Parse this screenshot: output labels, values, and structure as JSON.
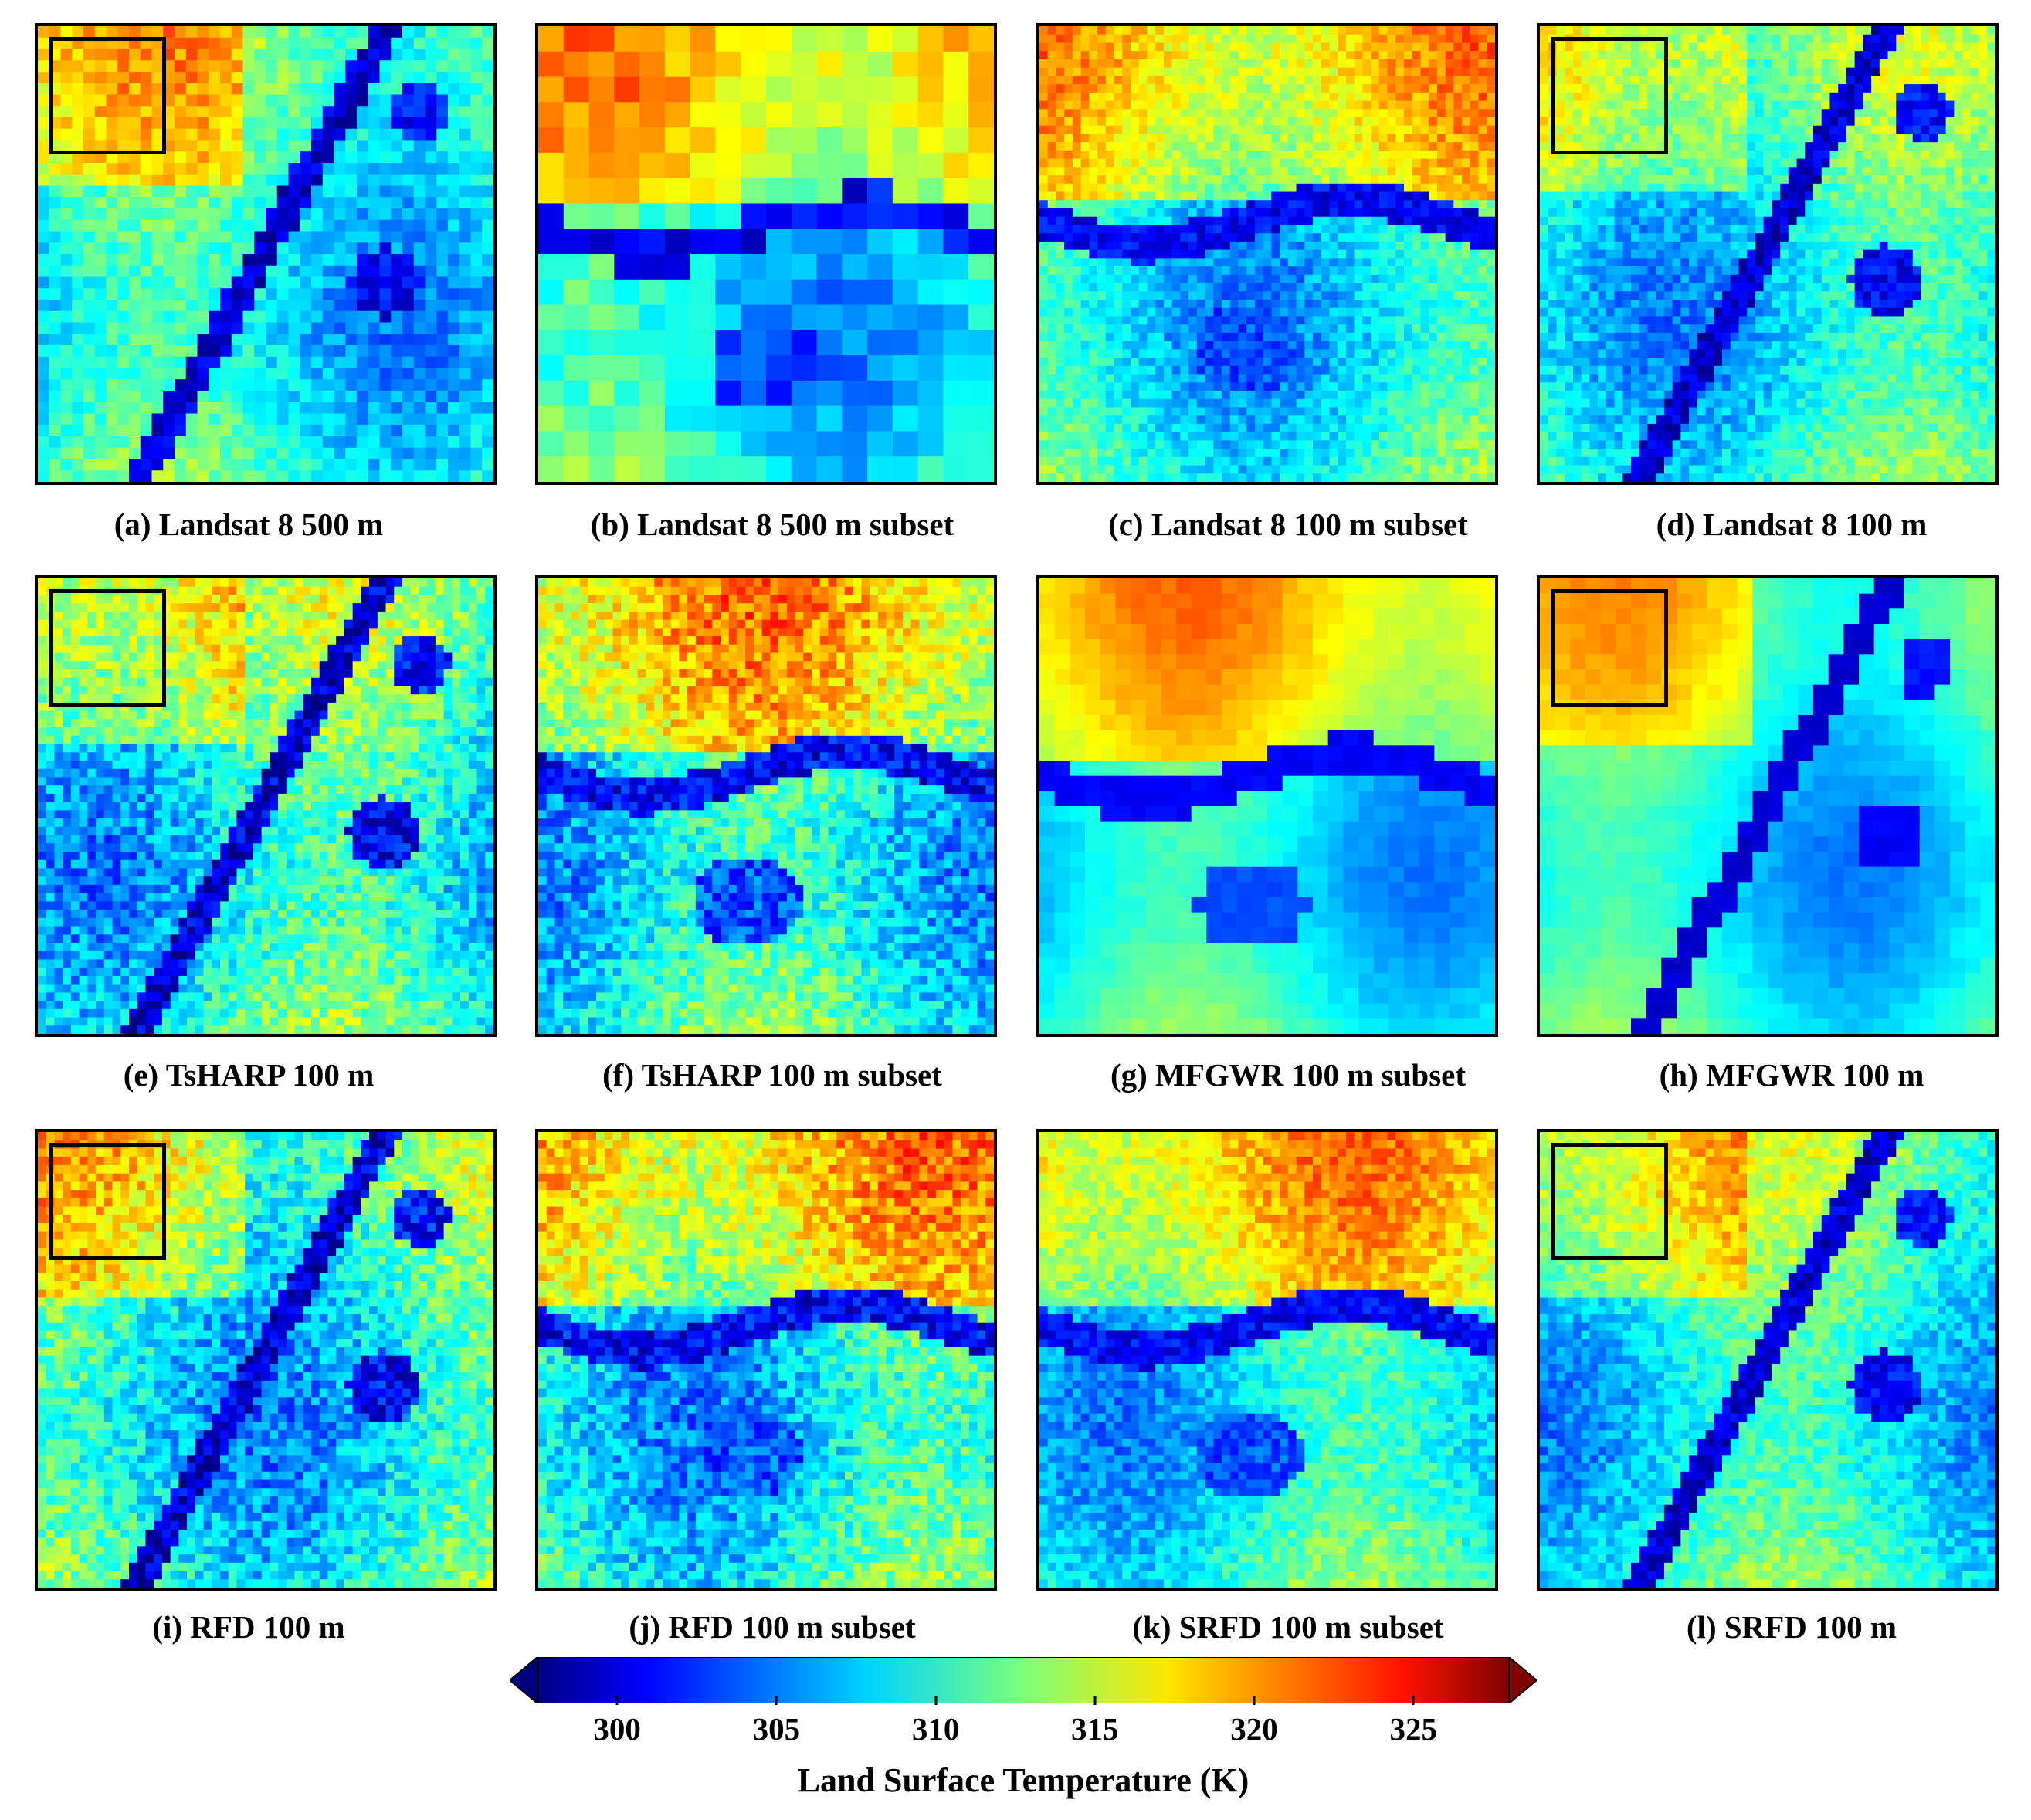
{
  "figure": {
    "panels": [
      {
        "id": "a",
        "caption": "(a) Landsat 8 500 m",
        "kind": "full",
        "texture": "coarse"
      },
      {
        "id": "b",
        "caption": "(b) Landsat 8 500 m subset",
        "kind": "subset",
        "texture": "coarse"
      },
      {
        "id": "c",
        "caption": "(c) Landsat 8 100 m subset",
        "kind": "subset",
        "texture": "fine"
      },
      {
        "id": "d",
        "caption": "(d) Landsat 8 100 m",
        "kind": "full",
        "texture": "fine"
      },
      {
        "id": "e",
        "caption": "(e) TsHARP 100 m",
        "kind": "full",
        "texture": "noisy"
      },
      {
        "id": "f",
        "caption": "(f) TsHARP 100 m subset",
        "kind": "subset",
        "texture": "noisy"
      },
      {
        "id": "g",
        "caption": "(g) MFGWR 100 m subset",
        "kind": "subset",
        "texture": "smooth"
      },
      {
        "id": "h",
        "caption": "(h) MFGWR 100 m",
        "kind": "full",
        "texture": "smooth"
      },
      {
        "id": "i",
        "caption": "(i) RFD 100 m",
        "kind": "full",
        "texture": "noisy"
      },
      {
        "id": "j",
        "caption": "(j) RFD 100 m subset",
        "kind": "subset",
        "texture": "noisy"
      },
      {
        "id": "k",
        "caption": "(k) SRFD 100 m subset",
        "kind": "subset",
        "texture": "fine"
      },
      {
        "id": "l",
        "caption": "(l) SRFD 100 m",
        "kind": "full",
        "texture": "fine"
      }
    ],
    "colorbar": {
      "label": "Land Surface Temperature (K)",
      "ticks": [
        "300",
        "305",
        "310",
        "315",
        "320",
        "325"
      ],
      "tick_values": [
        300,
        305,
        310,
        315,
        320,
        325
      ],
      "range": [
        297.5,
        328
      ],
      "colormap": "jet",
      "extend": "both"
    },
    "colors": {
      "water": "#1230c8",
      "cool": "#2ec6f0",
      "mid": "#6fdcb0",
      "warm": "#f4d23a",
      "hot": "#e8501e"
    }
  }
}
